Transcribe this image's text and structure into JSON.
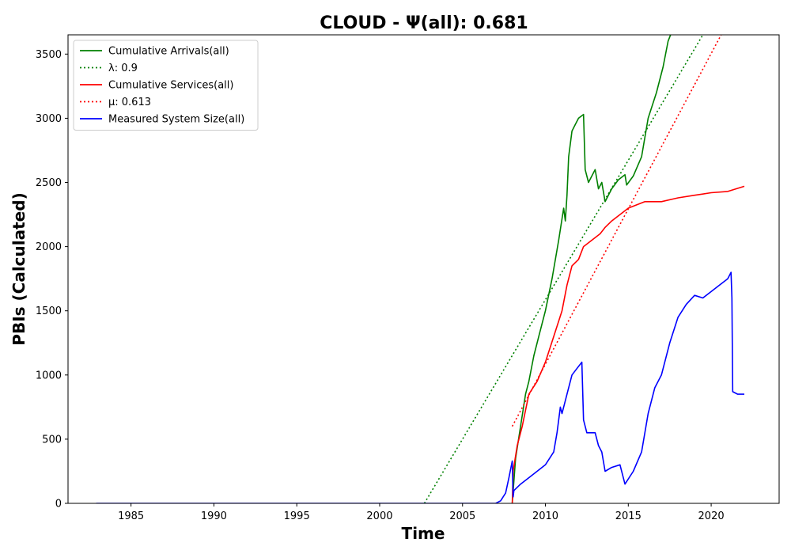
{
  "chart_data": {
    "type": "line",
    "title": "CLOUD -  Ψ(all): 0.681",
    "xlabel": "Time",
    "ylabel": "PBIs (Calculated)",
    "xlim": [
      1981.2,
      2024.1
    ],
    "ylim": [
      0,
      3650
    ],
    "x_ticks": [
      1985,
      1990,
      1995,
      2000,
      2005,
      2010,
      2015,
      2020
    ],
    "y_ticks": [
      0,
      500,
      1000,
      1500,
      2000,
      2500,
      3000,
      3500
    ],
    "grid": false,
    "legend_position": "upper-left",
    "series": [
      {
        "name": "Cumulative Arrivals(all)",
        "color": "#008000",
        "style": "solid",
        "x": [
          2008.0,
          2008.2,
          2008.5,
          2008.8,
          2009.0,
          2009.3,
          2009.6,
          2010.0,
          2010.4,
          2010.8,
          2011.1,
          2011.2,
          2011.3,
          2011.4,
          2011.6,
          2011.8,
          2012.0,
          2012.3,
          2012.4,
          2012.6,
          2013.0,
          2013.2,
          2013.4,
          2013.6,
          2014.0,
          2014.4,
          2014.8,
          2014.9,
          2015.3,
          2015.8,
          2016.2,
          2016.7,
          2017.1,
          2017.4,
          2017.7
        ],
        "y": [
          0,
          350,
          600,
          850,
          950,
          1150,
          1300,
          1500,
          1750,
          2050,
          2300,
          2200,
          2400,
          2700,
          2900,
          2950,
          3000,
          3030,
          2600,
          2500,
          2600,
          2450,
          2500,
          2350,
          2450,
          2520,
          2560,
          2480,
          2550,
          2700,
          3000,
          3200,
          3400,
          3600,
          3700
        ]
      },
      {
        "name": "λ: 0.9",
        "color": "#008000",
        "style": "dotted",
        "x": [
          2002.7,
          2019.5
        ],
        "y": [
          0,
          3650
        ]
      },
      {
        "name": "Cumulative Services(all)",
        "color": "#ff0000",
        "style": "solid",
        "x": [
          2008.0,
          2008.05,
          2008.3,
          2008.6,
          2009.0,
          2009.5,
          2010.0,
          2010.5,
          2011.0,
          2011.3,
          2011.6,
          2012.0,
          2012.3,
          2012.8,
          2013.3,
          2013.6,
          2014.0,
          2014.5,
          2015.0,
          2016.0,
          2017.0,
          2018.0,
          2019.0,
          2020.0,
          2021.0,
          2022.0
        ],
        "y": [
          0,
          250,
          450,
          600,
          850,
          950,
          1100,
          1300,
          1500,
          1700,
          1850,
          1900,
          2000,
          2050,
          2100,
          2150,
          2200,
          2250,
          2300,
          2350,
          2350,
          2380,
          2400,
          2420,
          2430,
          2470
        ]
      },
      {
        "name": "μ: 0.613",
        "color": "#ff0000",
        "style": "dotted",
        "x": [
          2008.0,
          2020.6
        ],
        "y": [
          600,
          3650
        ]
      },
      {
        "name": "Measured System Size(all)",
        "color": "#0000ff",
        "style": "solid",
        "x": [
          1982.9,
          2007.0,
          2007.3,
          2007.6,
          2007.8,
          2008.0,
          2008.05,
          2008.1,
          2008.5,
          2009.0,
          2009.5,
          2010.0,
          2010.5,
          2010.7,
          2010.9,
          2011.0,
          2011.3,
          2011.6,
          2011.9,
          2012.2,
          2012.3,
          2012.5,
          2013.0,
          2013.2,
          2013.4,
          2013.6,
          2014.0,
          2014.5,
          2014.8,
          2015.3,
          2015.8,
          2016.2,
          2016.6,
          2017.0,
          2017.5,
          2018.0,
          2018.5,
          2019.0,
          2019.5,
          2020.0,
          2020.5,
          2021.0,
          2021.2,
          2021.25,
          2021.3,
          2021.6,
          2022.0
        ],
        "y": [
          0,
          0,
          20,
          80,
          200,
          330,
          50,
          100,
          150,
          200,
          250,
          300,
          400,
          550,
          750,
          700,
          850,
          1000,
          1050,
          1100,
          650,
          550,
          550,
          450,
          400,
          250,
          280,
          300,
          150,
          250,
          400,
          700,
          900,
          1000,
          1250,
          1450,
          1550,
          1620,
          1600,
          1650,
          1700,
          1750,
          1800,
          1600,
          870,
          850,
          850
        ]
      }
    ]
  }
}
